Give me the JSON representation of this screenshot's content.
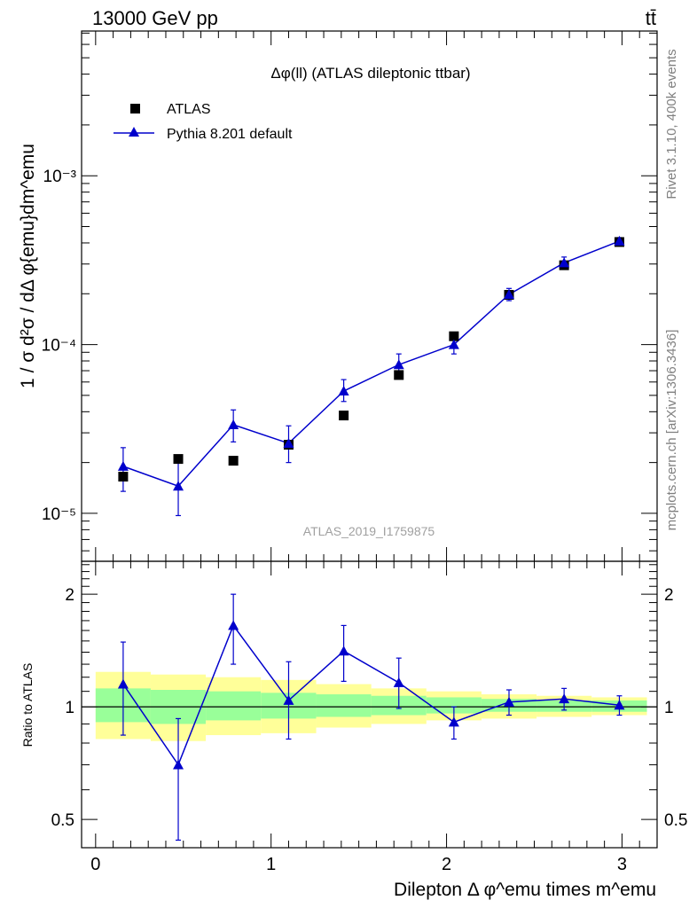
{
  "header": {
    "energy_label": "13000 GeV pp",
    "process_label": "tt̄"
  },
  "side_labels": {
    "rivet": "Rivet 3.1.10,  400k events",
    "mcplots": "mcplots.cern.ch [arXiv:1306.3436]"
  },
  "chart_data": [
    {
      "type": "scatter",
      "panel": "main",
      "title": "Δφ(ll) (ATLAS dileptonic ttbar)",
      "watermark": "ATLAS_2019_I1759875",
      "ylabel": "1 / σ  d²σ / dΔ φ{emu}dm^emu",
      "yscale": "log",
      "ylim": [
        5.2e-06,
        0.0072
      ],
      "xlim": [
        -0.08,
        3.2
      ],
      "y_ticks": [
        {
          "value": 1e-05,
          "label": "10⁻⁵"
        },
        {
          "value": 0.0001,
          "label": "10⁻⁴"
        },
        {
          "value": 0.001,
          "label": "10⁻³"
        }
      ],
      "legend_position": "top-left",
      "series": [
        {
          "name": "ATLAS",
          "marker": "square",
          "color": "#000000",
          "x": [
            0.157,
            0.471,
            0.785,
            1.1,
            1.414,
            1.728,
            2.042,
            2.356,
            2.67,
            2.985
          ],
          "y": [
            1.65e-05,
            2.1e-05,
            2.05e-05,
            2.55e-05,
            3.8e-05,
            6.6e-05,
            0.000112,
            0.000197,
            0.000295,
            0.000405
          ]
        },
        {
          "name": "Pythia 8.201 default",
          "marker": "triangle",
          "color": "#0000cc",
          "x": [
            0.157,
            0.471,
            0.785,
            1.1,
            1.414,
            1.728,
            2.042,
            2.356,
            2.67,
            2.985
          ],
          "y": [
            1.9e-05,
            1.45e-05,
            3.35e-05,
            2.6e-05,
            5.3e-05,
            7.6e-05,
            0.0001,
            0.000198,
            0.000305,
            0.00041
          ],
          "yerr_low": [
            1.35e-05,
            9.7e-06,
            2.65e-05,
            2e-05,
            4.6e-05,
            6.6e-05,
            8.8e-05,
            0.000182,
            0.000285,
            0.00039
          ],
          "yerr_high": [
            2.45e-05,
            2e-05,
            4.1e-05,
            3.3e-05,
            6.2e-05,
            8.8e-05,
            0.000112,
            0.000215,
            0.00033,
            0.00043
          ]
        }
      ]
    },
    {
      "type": "line",
      "panel": "ratio",
      "ylabel": "Ratio to ATLAS",
      "xlabel": "Dilepton Δ φ^emu times m^emu",
      "yscale": "log",
      "ylim": [
        0.42,
        2.45
      ],
      "xlim": [
        -0.08,
        3.2
      ],
      "x_ticks": [
        0,
        1,
        2,
        3
      ],
      "y_ticks": [
        {
          "value": 0.5,
          "label": "0.5"
        },
        {
          "value": 1,
          "label": "1"
        },
        {
          "value": 2,
          "label": "2"
        }
      ],
      "bands": {
        "bin_edges": [
          0,
          0.314,
          0.628,
          0.942,
          1.257,
          1.571,
          1.885,
          2.199,
          2.513,
          2.827,
          3.142
        ],
        "outer_low": [
          0.82,
          0.81,
          0.84,
          0.85,
          0.88,
          0.9,
          0.92,
          0.93,
          0.94,
          0.95
        ],
        "outer_high": [
          1.24,
          1.22,
          1.2,
          1.18,
          1.15,
          1.12,
          1.1,
          1.08,
          1.07,
          1.06
        ],
        "inner_low": [
          0.91,
          0.9,
          0.92,
          0.93,
          0.94,
          0.95,
          0.96,
          0.97,
          0.97,
          0.97
        ],
        "inner_high": [
          1.12,
          1.11,
          1.1,
          1.09,
          1.08,
          1.07,
          1.06,
          1.05,
          1.04,
          1.04
        ],
        "outer_color": "#ffff99",
        "inner_color": "#99ff99"
      },
      "series": [
        {
          "name": "Pythia 8.201 default",
          "color": "#0000cc",
          "x": [
            0.157,
            0.471,
            0.785,
            1.1,
            1.414,
            1.728,
            2.042,
            2.356,
            2.67,
            2.985
          ],
          "y": [
            1.15,
            0.7,
            1.65,
            1.04,
            1.41,
            1.16,
            0.91,
            1.03,
            1.05,
            1.01
          ],
          "yerr_low": [
            0.84,
            0.44,
            1.3,
            0.82,
            1.17,
            0.99,
            0.82,
            0.95,
            0.98,
            0.95
          ],
          "yerr_high": [
            1.49,
            0.93,
            2.0,
            1.32,
            1.65,
            1.35,
            1.0,
            1.11,
            1.12,
            1.07
          ]
        }
      ]
    }
  ]
}
